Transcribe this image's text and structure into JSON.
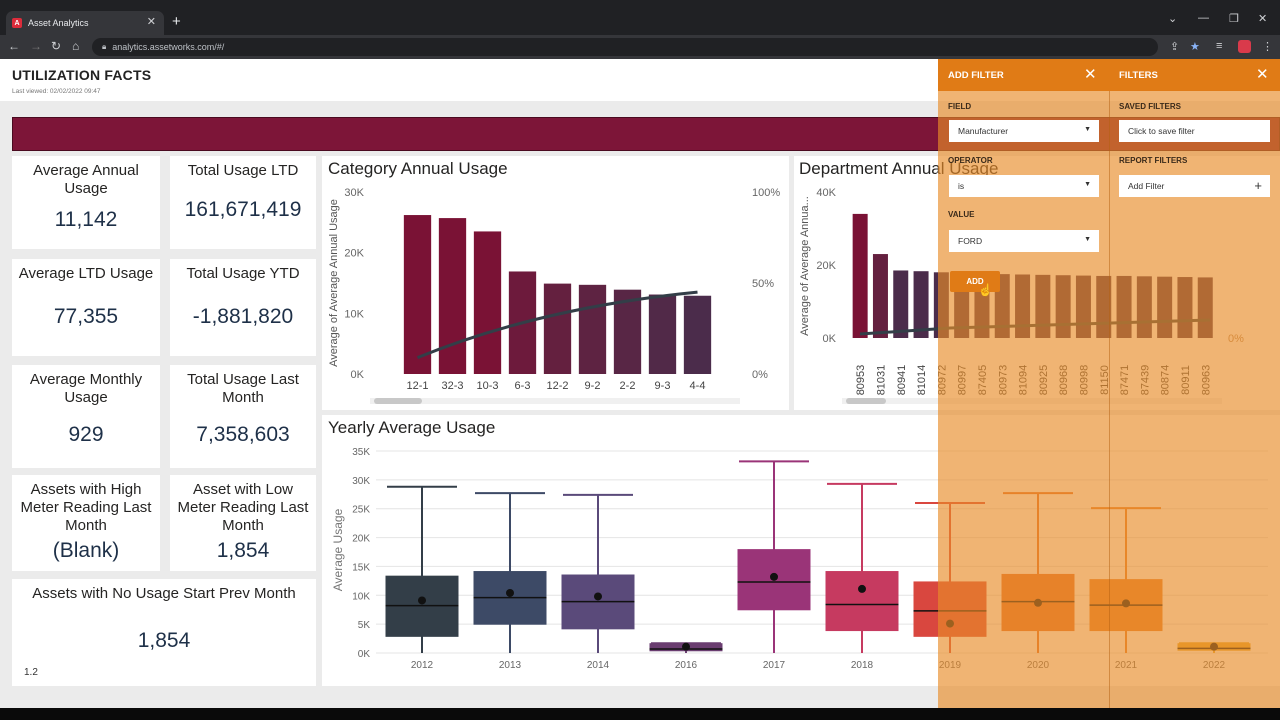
{
  "browser": {
    "tab_title": "Asset Analytics",
    "tab_favicon": "A",
    "url": "analytics.assetworks.com/#/"
  },
  "header": {
    "title": "UTILIZATION FACTS",
    "last_viewed": "Last viewed: 02/02/2022 09:47"
  },
  "banner_color": "#7d1538",
  "cards": {
    "avg_annual": {
      "label": "Average Annual Usage",
      "value": "11,142"
    },
    "total_ltd": {
      "label": "Total Usage LTD",
      "value": "161,671,419"
    },
    "avg_ltd": {
      "label": "Average LTD Usage",
      "value": "77,355"
    },
    "total_ytd": {
      "label": "Total Usage YTD",
      "value": "-1,881,820"
    },
    "avg_monthly": {
      "label": "Average Monthly Usage",
      "value": "929"
    },
    "total_last_month": {
      "label": "Total Usage Last Month",
      "value": "7,358,603"
    },
    "high_meter": {
      "label": "Assets with High Meter Reading Last Month",
      "value": "(Blank)"
    },
    "low_meter": {
      "label": "Asset with Low Meter Reading Last Month",
      "value": "1,854"
    },
    "no_usage": {
      "label": "Assets with No Usage Start Prev Month",
      "value": "1,854"
    }
  },
  "version": "1.2",
  "chart_data": [
    {
      "type": "bar",
      "title": "Category Annual Usage",
      "ylabel": "Average of Average Annual Usage",
      "categories": [
        "12-1",
        "32-3",
        "10-3",
        "6-3",
        "12-2",
        "9-2",
        "2-2",
        "9-3",
        "4-4"
      ],
      "values": [
        26200,
        25700,
        23500,
        16900,
        14900,
        14700,
        13900,
        13100,
        12900
      ],
      "ylim": [
        0,
        30000
      ],
      "yticks": [
        "0K",
        "10K",
        "20K",
        "30K"
      ],
      "y2ticks": [
        "0%",
        "50%",
        "100%"
      ],
      "pareto_line": {
        "start": 0.09,
        "end": 0.45
      },
      "colors": [
        "#7a1235",
        "#7a1235",
        "#7a1235",
        "#6d1a3c",
        "#64203f",
        "#5e2342",
        "#582645",
        "#512948",
        "#4b2c4b"
      ]
    },
    {
      "type": "bar",
      "title": "Department Annual Usage",
      "ylabel": "Average of Average Annua...",
      "categories": [
        "80953",
        "81031",
        "80941",
        "81014",
        "80972",
        "80997",
        "87405",
        "80973",
        "81094",
        "80925",
        "80968",
        "80998",
        "81150",
        "87471",
        "87439",
        "80874",
        "80911",
        "80963"
      ],
      "values": [
        34000,
        23000,
        18500,
        18300,
        18000,
        17800,
        17600,
        17500,
        17400,
        17300,
        17200,
        17100,
        17000,
        17000,
        16900,
        16800,
        16700,
        16600
      ],
      "ylim": [
        0,
        40000
      ],
      "yticks": [
        "0K",
        "20K",
        "40K"
      ],
      "y2ticks": [
        "0%",
        "50%"
      ]
    },
    {
      "type": "box",
      "title": "Yearly Average Usage",
      "ylabel": "Average Usage",
      "categories": [
        "2012",
        "2013",
        "2014",
        "2016",
        "2017",
        "2018",
        "2019",
        "2020",
        "2021",
        "2022"
      ],
      "ylim": [
        0,
        35000
      ],
      "yticks": [
        "0K",
        "5K",
        "10K",
        "15K",
        "20K",
        "25K",
        "30K",
        "35K"
      ],
      "boxes": [
        {
          "min": 0,
          "q1": 2800,
          "median": 8200,
          "q3": 13400,
          "max": 28800,
          "mean": 9100,
          "color": "#333e48"
        },
        {
          "min": 0,
          "q1": 4900,
          "median": 9600,
          "q3": 14200,
          "max": 27700,
          "mean": 10400,
          "color": "#3d4a66"
        },
        {
          "min": 0,
          "q1": 4100,
          "median": 8900,
          "q3": 13600,
          "max": 27400,
          "mean": 9800,
          "color": "#5a4a7a"
        },
        {
          "min": 0,
          "q1": 300,
          "median": 700,
          "q3": 1700,
          "max": 1700,
          "mean": 1100,
          "color": "#6a3d70"
        },
        {
          "min": 0,
          "q1": 7400,
          "median": 12300,
          "q3": 18000,
          "max": 33200,
          "mean": 13200,
          "color": "#9a3478"
        },
        {
          "min": 0,
          "q1": 3800,
          "median": 8400,
          "q3": 14200,
          "max": 29300,
          "mean": 11100,
          "color": "#c63a60"
        },
        {
          "min": 0,
          "q1": 2800,
          "median": 7300,
          "q3": 12400,
          "max": 26000,
          "mean": 5100,
          "color": "#d9473f"
        },
        {
          "min": 0,
          "q1": 3800,
          "median": 8900,
          "q3": 13700,
          "max": 27700,
          "mean": 8700,
          "color": "#e46f2c"
        },
        {
          "min": 0,
          "q1": 3800,
          "median": 8300,
          "q3": 12800,
          "max": 25100,
          "mean": 8600,
          "color": "#e87f2c"
        },
        {
          "min": 0,
          "q1": 400,
          "median": 800,
          "q3": 1700,
          "max": 1700,
          "mean": 1100,
          "color": "#e8a830"
        }
      ]
    }
  ],
  "filter_panel": {
    "add_filter_title": "ADD FILTER",
    "filters_title": "FILTERS",
    "field_label": "FIELD",
    "field_value": "Manufacturer",
    "operator_label": "OPERATOR",
    "operator_value": "is",
    "value_label": "VALUE",
    "value_value": "FORD",
    "add_button": "ADD",
    "saved_filters_label": "SAVED FILTERS",
    "saved_filters_placeholder": "Click to save filter",
    "report_filters_label": "REPORT FILTERS",
    "report_filters_value": "Add Filter",
    "overlay_color": "#e07b16"
  }
}
